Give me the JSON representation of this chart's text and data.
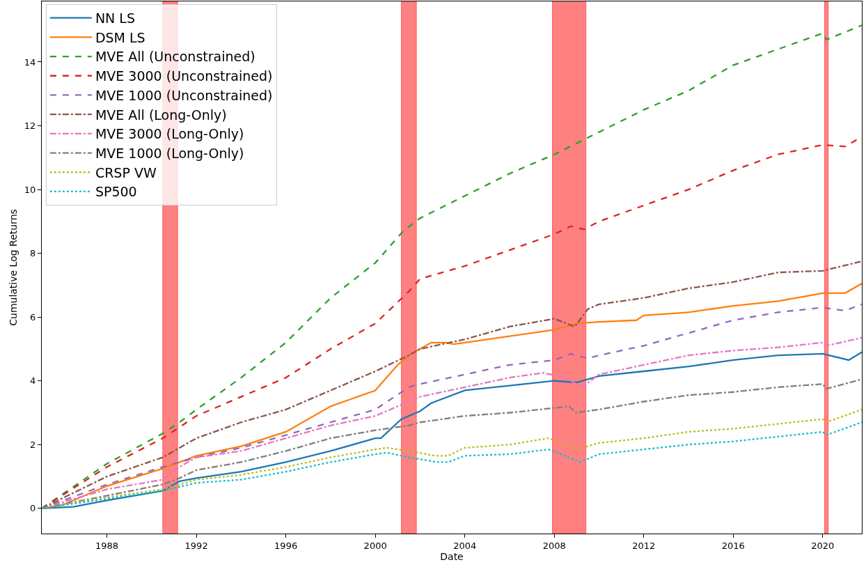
{
  "chart_data": {
    "type": "line",
    "xlabel": "Date",
    "ylabel": "Cumulative Log Returns",
    "xlim": [
      "1985-02",
      "2021-10"
    ],
    "ylim": [
      -0.79,
      15.9
    ],
    "xticks": [
      "1988",
      "1992",
      "1996",
      "2000",
      "2004",
      "2008",
      "2012",
      "2016",
      "2020"
    ],
    "yticks": [
      0,
      2,
      4,
      6,
      8,
      10,
      12,
      14
    ],
    "grid": false,
    "legend": "top left",
    "bands": [
      {
        "axis": "x",
        "from": "1990-07",
        "to": "1991-03",
        "color": "#ff8080"
      },
      {
        "axis": "x",
        "from": "2001-03",
        "to": "2001-11",
        "color": "#ff8080"
      },
      {
        "axis": "x",
        "from": "2007-12",
        "to": "2009-06",
        "color": "#ff8080"
      },
      {
        "axis": "x",
        "from": "2020-02",
        "to": "2020-04",
        "color": "#ff8080"
      }
    ],
    "series": [
      {
        "name": "NN LS",
        "color": "#1f77b4",
        "line_style": "solid",
        "x": [
          "1985-02",
          "1986-07",
          "1988",
          "1990-07",
          "1991-04",
          "1992",
          "1994",
          "1996",
          "1998",
          "2000",
          "2000-04",
          "2001-03",
          "2002",
          "2002-07",
          "2004",
          "2006",
          "2008",
          "2009",
          "2010",
          "2012",
          "2014",
          "2016",
          "2018",
          "2020",
          "2021-03",
          "2021-10"
        ],
        "values": [
          0,
          0.05,
          0.25,
          0.55,
          0.85,
          0.95,
          1.15,
          1.45,
          1.8,
          2.2,
          2.2,
          2.8,
          3.05,
          3.3,
          3.7,
          3.85,
          4.0,
          3.95,
          4.15,
          4.3,
          4.45,
          4.65,
          4.8,
          4.85,
          4.65,
          4.9
        ]
      },
      {
        "name": "DSM LS",
        "color": "#ff7f0e",
        "line_style": "solid",
        "x": [
          "1985-02",
          "1986",
          "1988",
          "1990-07",
          "1992",
          "1994",
          "1996",
          "1998",
          "2000",
          "2000-04",
          "2001",
          "2001-07",
          "2002-07",
          "2003-03",
          "2003-07",
          "2004",
          "2006",
          "2008",
          "2009",
          "2010",
          "2011-09",
          "2012",
          "2014",
          "2016",
          "2018",
          "2020",
          "2021",
          "2021-10"
        ],
        "values": [
          0,
          0.1,
          0.7,
          1.25,
          1.65,
          1.95,
          2.4,
          3.2,
          3.7,
          3.9,
          4.5,
          4.8,
          5.2,
          5.2,
          5.15,
          5.2,
          5.4,
          5.6,
          5.8,
          5.85,
          5.9,
          6.05,
          6.15,
          6.35,
          6.5,
          6.75,
          6.75,
          7.05
        ]
      },
      {
        "name": "MVE All (Unconstrained)",
        "color": "#2ca02c",
        "line_style": "dashed",
        "x": [
          "1985-02",
          "1988",
          "1990-07",
          "1991-04",
          "1992",
          "1994",
          "1996",
          "1998",
          "2000",
          "2001-04",
          "2002",
          "2004",
          "2006",
          "2008",
          "2010",
          "2012",
          "2014",
          "2016",
          "2018",
          "2020",
          "2020-03",
          "2021-10"
        ],
        "values": [
          0,
          1.4,
          2.35,
          2.7,
          3.1,
          4.1,
          5.2,
          6.6,
          7.7,
          8.7,
          9.1,
          9.8,
          10.5,
          11.1,
          11.8,
          12.5,
          13.1,
          13.9,
          14.4,
          14.9,
          14.7,
          15.15
        ]
      },
      {
        "name": "MVE 3000 (Unconstrained)",
        "color": "#d62728",
        "line_style": "dashed",
        "x": [
          "1985-02",
          "1988",
          "1990-07",
          "1992",
          "1994",
          "1996",
          "1998",
          "2000",
          "2001-07",
          "2002",
          "2004",
          "2006",
          "2008",
          "2008-10",
          "2009-05",
          "2010",
          "2012",
          "2014",
          "2016",
          "2018",
          "2020",
          "2021",
          "2021-10"
        ],
        "values": [
          0,
          1.3,
          2.2,
          2.9,
          3.5,
          4.1,
          5.0,
          5.8,
          6.8,
          7.2,
          7.6,
          8.1,
          8.6,
          8.85,
          8.75,
          9.0,
          9.5,
          10.0,
          10.6,
          11.1,
          11.4,
          11.35,
          11.65
        ]
      },
      {
        "name": "MVE 1000 (Unconstrained)",
        "color": "#9467bd",
        "line_style": "dashed",
        "x": [
          "1985-02",
          "1988",
          "1990-07",
          "1992",
          "1994",
          "1996",
          "1998",
          "2000",
          "2001-07",
          "2002",
          "2004",
          "2006",
          "2008",
          "2008-10",
          "2009-07",
          "2010",
          "2012",
          "2014",
          "2016",
          "2018",
          "2020",
          "2021",
          "2021-10"
        ],
        "values": [
          0,
          0.75,
          1.3,
          1.6,
          1.9,
          2.3,
          2.7,
          3.1,
          3.8,
          3.9,
          4.2,
          4.5,
          4.65,
          4.85,
          4.7,
          4.8,
          5.1,
          5.5,
          5.9,
          6.15,
          6.3,
          6.2,
          6.4
        ]
      },
      {
        "name": "MVE All (Long-Only)",
        "color": "#8c564b",
        "line_style": "dashdot",
        "x": [
          "1985-02",
          "1988",
          "1990-07",
          "1992",
          "1994",
          "1996",
          "1998",
          "2000",
          "2001-07",
          "2002",
          "2004",
          "2006",
          "2008",
          "2008-12",
          "2009-07",
          "2010",
          "2012",
          "2014",
          "2016",
          "2018",
          "2020",
          "2021-10"
        ],
        "values": [
          0,
          1.0,
          1.6,
          2.2,
          2.7,
          3.1,
          3.7,
          4.3,
          4.8,
          5.0,
          5.3,
          5.7,
          5.95,
          5.7,
          6.25,
          6.4,
          6.6,
          6.9,
          7.1,
          7.4,
          7.45,
          7.75
        ]
      },
      {
        "name": "MVE 3000 (Long-Only)",
        "color": "#e377c2",
        "line_style": "dashdot",
        "x": [
          "1985-02",
          "1988",
          "1990-07",
          "1991-04",
          "1992",
          "1994",
          "1996",
          "1998",
          "2000",
          "2001-07",
          "2002",
          "2004",
          "2006",
          "2007-07",
          "2008-07",
          "2009-04",
          "2010",
          "2012",
          "2014",
          "2016",
          "2018",
          "2020",
          "2020-03",
          "2021-10"
        ],
        "values": [
          0,
          0.6,
          0.9,
          1.3,
          1.6,
          1.8,
          2.2,
          2.6,
          2.9,
          3.35,
          3.5,
          3.8,
          4.1,
          4.25,
          4.1,
          3.8,
          4.2,
          4.5,
          4.8,
          4.95,
          5.05,
          5.2,
          5.1,
          5.35
        ]
      },
      {
        "name": "MVE 1000 (Long-Only)",
        "color": "#7f7f7f",
        "line_style": "dashdot",
        "x": [
          "1985-02",
          "1988",
          "1990-07",
          "1991-04",
          "1992",
          "1994",
          "1996",
          "1998",
          "2000",
          "2001-07",
          "2002",
          "2004",
          "2006",
          "2008",
          "2008-09",
          "2009",
          "2010",
          "2012",
          "2014",
          "2016",
          "2018",
          "2020",
          "2020-03",
          "2021-10"
        ],
        "values": [
          0,
          0.4,
          0.75,
          0.95,
          1.2,
          1.45,
          1.8,
          2.2,
          2.45,
          2.6,
          2.7,
          2.9,
          3.0,
          3.15,
          3.2,
          3.0,
          3.1,
          3.35,
          3.55,
          3.65,
          3.8,
          3.9,
          3.75,
          4.05
        ]
      },
      {
        "name": "CRSP VW",
        "color": "#bcbd22",
        "line_style": "dotted",
        "x": [
          "1985-02",
          "1988",
          "1990-07",
          "1992",
          "1994",
          "1996",
          "1998",
          "2000",
          "2000-07",
          "2001-07",
          "2002-09",
          "2003-04",
          "2004",
          "2006",
          "2007-10",
          "2009",
          "2010",
          "2012",
          "2014",
          "2016",
          "2018",
          "2020",
          "2020-03",
          "2021-10"
        ],
        "values": [
          0,
          0.35,
          0.6,
          0.9,
          1.05,
          1.3,
          1.6,
          1.85,
          1.9,
          1.8,
          1.65,
          1.65,
          1.9,
          2.0,
          2.2,
          1.85,
          2.05,
          2.2,
          2.4,
          2.5,
          2.65,
          2.8,
          2.7,
          3.1
        ]
      },
      {
        "name": "SP500",
        "color": "#17becf",
        "line_style": "dotted",
        "x": [
          "1985-02",
          "1988",
          "1990-07",
          "1992",
          "1994",
          "1996",
          "1998",
          "2000",
          "2000-07",
          "2001-07",
          "2002-10",
          "2003-04",
          "2004",
          "2006",
          "2007-10",
          "2009-03",
          "2010",
          "2012",
          "2014",
          "2016",
          "2018",
          "2020",
          "2020-03",
          "2021-10"
        ],
        "values": [
          0,
          0.3,
          0.55,
          0.8,
          0.9,
          1.15,
          1.45,
          1.7,
          1.75,
          1.6,
          1.45,
          1.45,
          1.65,
          1.7,
          1.85,
          1.45,
          1.7,
          1.85,
          2.0,
          2.1,
          2.25,
          2.4,
          2.3,
          2.7
        ]
      }
    ]
  }
}
